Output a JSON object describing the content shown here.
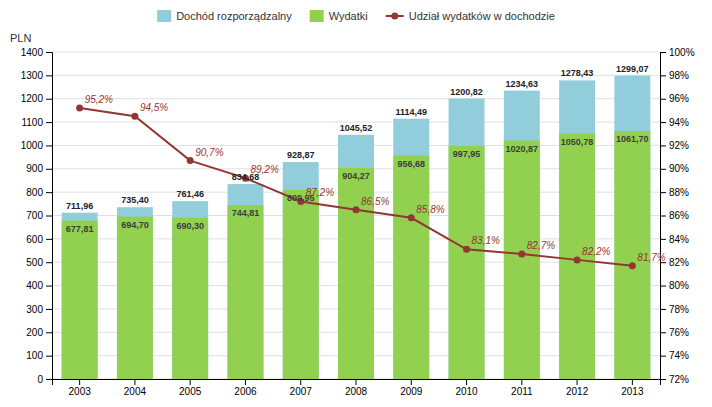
{
  "chart_data": {
    "type": "bar",
    "ylabel": "PLN",
    "categories": [
      "2003",
      "2004",
      "2005",
      "2006",
      "2007",
      "2008",
      "2009",
      "2010",
      "2011",
      "2012",
      "2013"
    ],
    "series": [
      {
        "name": "Dochód rozporządzalny",
        "type": "bar",
        "color": "#92CDDC",
        "values": [
          711.96,
          735.4,
          761.46,
          834.68,
          928.87,
          1045.52,
          1114.49,
          1200.82,
          1234.63,
          1278.43,
          1299.07
        ],
        "value_labels": [
          "711,96",
          "735,40",
          "761,46",
          "834,68",
          "928,87",
          "1045,52",
          "1114,49",
          "1200,82",
          "1234,63",
          "1278,43",
          "1299,07"
        ]
      },
      {
        "name": "Wydatki",
        "type": "bar",
        "color": "#92D050",
        "values": [
          677.81,
          694.7,
          690.3,
          744.81,
          809.95,
          904.27,
          956.68,
          997.95,
          1020.87,
          1050.78,
          1061.7
        ],
        "value_labels": [
          "677,81",
          "694,70",
          "690,30",
          "744,81",
          "809,95",
          "904,27",
          "956,68",
          "997,95",
          "1020,87",
          "1050,78",
          "1061,70"
        ]
      },
      {
        "name": "Udział wydatków w dochodzie",
        "type": "line",
        "axis": "y2",
        "color": "#943634",
        "marker": "circle",
        "values": [
          95.2,
          94.5,
          90.7,
          89.2,
          87.2,
          86.5,
          85.8,
          83.1,
          82.7,
          82.2,
          81.7
        ],
        "value_labels": [
          "95,2%",
          "94,5%",
          "90,7%",
          "89,2%",
          "87,2%",
          "86,5%",
          "85,8%",
          "83,1%",
          "82,7%",
          "82,2%",
          "81,7%"
        ]
      }
    ],
    "ylim": [
      0,
      1400
    ],
    "yticks": [
      0,
      100,
      200,
      300,
      400,
      500,
      600,
      700,
      800,
      900,
      1000,
      1100,
      1200,
      1300,
      1400
    ],
    "y2lim": [
      72,
      100
    ],
    "y2ticks": [
      {
        "value": 72,
        "label": "72%"
      },
      {
        "value": 74,
        "label": "74%"
      },
      {
        "value": 76,
        "label": "76%"
      },
      {
        "value": 78,
        "label": "78%"
      },
      {
        "value": 80,
        "label": "80%"
      },
      {
        "value": 82,
        "label": "82%"
      },
      {
        "value": 84,
        "label": "84%"
      },
      {
        "value": 86,
        "label": "86%"
      },
      {
        "value": 88,
        "label": "88%"
      },
      {
        "value": 90,
        "label": "90%"
      },
      {
        "value": 92,
        "label": "92%"
      },
      {
        "value": 94,
        "label": "94%"
      },
      {
        "value": 96,
        "label": "96%"
      },
      {
        "value": 98,
        "label": "98%"
      },
      {
        "value": 100,
        "label": "100%"
      }
    ],
    "stacked": false,
    "grid": true,
    "legend": "top",
    "data_labels": true
  }
}
